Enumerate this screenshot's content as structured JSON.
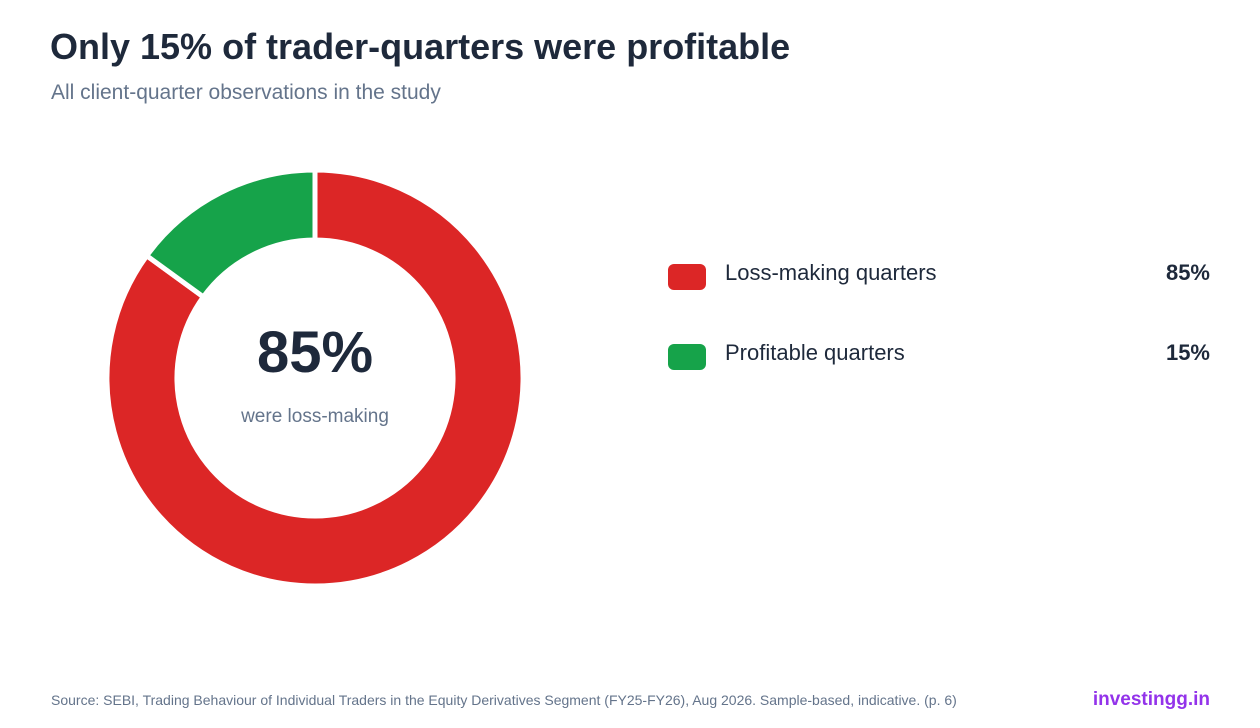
{
  "title": "Only 15% of trader-quarters were profitable",
  "subtitle": "All client-quarter observations in the study",
  "center": {
    "value": "85%",
    "label": "were loss-making"
  },
  "chart_data": {
    "type": "pie",
    "title": "Only 15% of trader-quarters were profitable",
    "subtitle": "All client-quarter observations in the study",
    "categories": [
      "Loss-making quarters",
      "Profitable quarters"
    ],
    "values": [
      85,
      15
    ],
    "value_labels": [
      "85%",
      "15%"
    ],
    "colors": [
      "#dc2626",
      "#16a34a"
    ],
    "donut": true,
    "legend_position": "right"
  },
  "legend": [
    {
      "label": "Loss-making quarters",
      "value": "85%",
      "color": "#dc2626"
    },
    {
      "label": "Profitable quarters",
      "value": "15%",
      "color": "#16a34a"
    }
  ],
  "source": "Source: SEBI, Trading Behaviour of Individual Traders in the Equity Derivatives Segment (FY25-FY26), Aug 2026. Sample-based, indicative. (p. 6)",
  "brand": "investingg.in"
}
